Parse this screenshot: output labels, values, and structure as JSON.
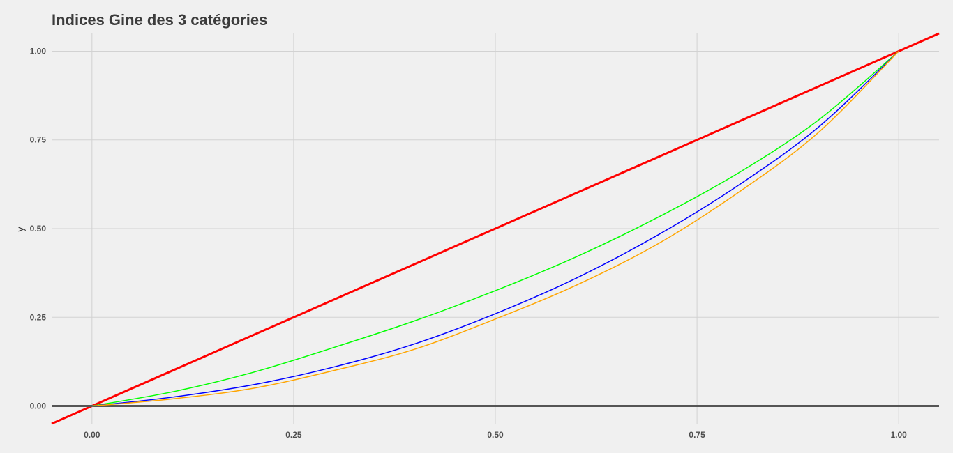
{
  "chart_data": {
    "type": "line",
    "title": "Indices Gine des 3 catégories",
    "xlabel": "",
    "ylabel": "y",
    "xlim": [
      -0.05,
      1.05
    ],
    "ylim": [
      -0.05,
      1.05
    ],
    "grid": true,
    "legend": "none",
    "x_ticks": [
      0,
      0.25,
      0.5,
      0.75,
      1
    ],
    "x_tick_labels": [
      "0.00",
      "0.25",
      "0.50",
      "0.75",
      "1.00"
    ],
    "y_ticks": [
      0,
      0.25,
      0.5,
      0.75,
      1
    ],
    "y_tick_labels": [
      "0.00",
      "0.25",
      "0.50",
      "0.75",
      "1.00"
    ],
    "reference_lines": [
      {
        "kind": "abline",
        "slope": 1,
        "intercept": 0,
        "color": "#ff0000"
      },
      {
        "kind": "hline",
        "y": 0,
        "color": "#555555"
      }
    ],
    "series": [
      {
        "color": "#00ff00",
        "x": [
          0,
          0.1,
          0.2,
          0.3,
          0.4,
          0.5,
          0.6,
          0.7,
          0.8,
          0.9,
          1.0
        ],
        "y": [
          0,
          0.04,
          0.095,
          0.165,
          0.24,
          0.325,
          0.42,
          0.53,
          0.655,
          0.805,
          1.0
        ]
      },
      {
        "color": "#0000ff",
        "x": [
          0,
          0.1,
          0.2,
          0.3,
          0.4,
          0.5,
          0.6,
          0.7,
          0.8,
          0.9,
          1.0
        ],
        "y": [
          0,
          0.025,
          0.06,
          0.11,
          0.175,
          0.26,
          0.36,
          0.48,
          0.62,
          0.785,
          1.0
        ]
      },
      {
        "color": "#ffa500",
        "x": [
          0,
          0.1,
          0.2,
          0.3,
          0.4,
          0.5,
          0.6,
          0.7,
          0.8,
          0.9,
          1.0
        ],
        "y": [
          0,
          0.02,
          0.05,
          0.1,
          0.16,
          0.245,
          0.34,
          0.455,
          0.6,
          0.77,
          1.0
        ]
      }
    ]
  }
}
